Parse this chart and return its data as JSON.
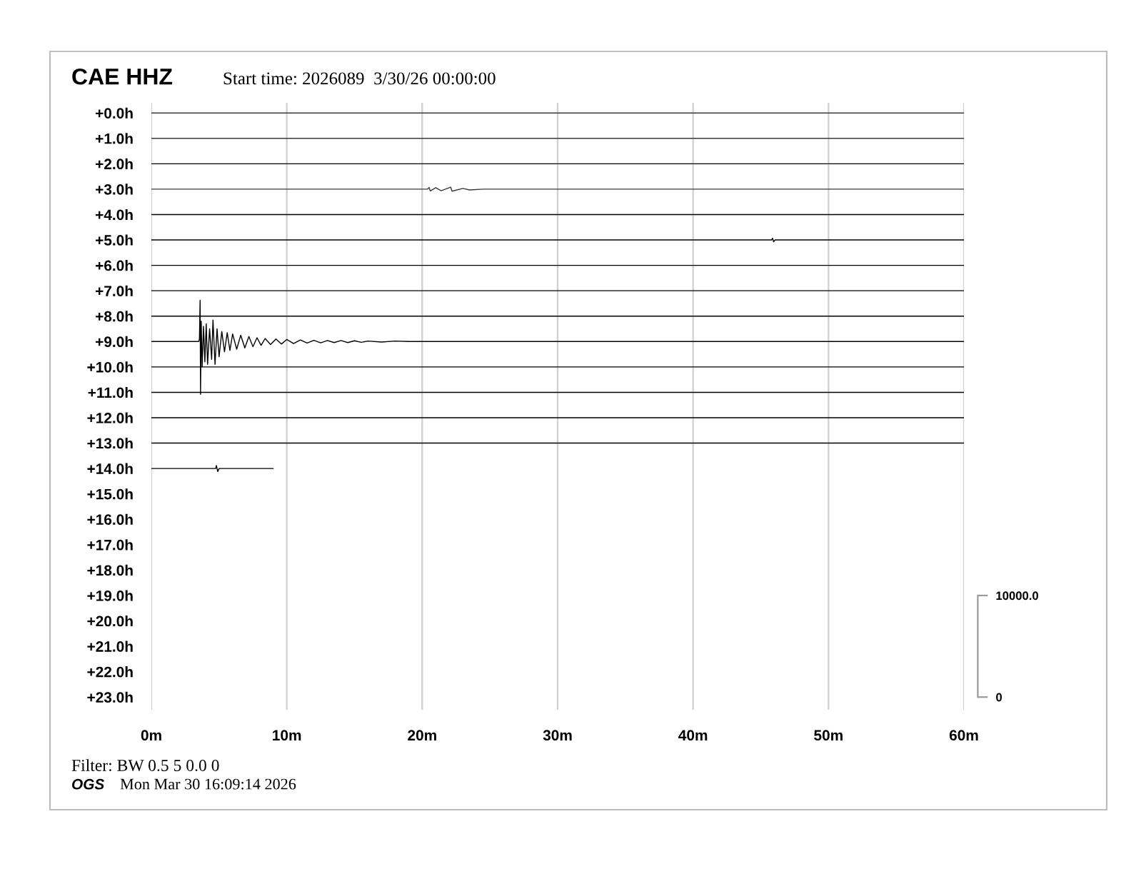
{
  "chart_data": {
    "type": "line",
    "title": "CAE HHZ",
    "subtitle": "Start time: 2026089  3/30/26 00:00:00",
    "annotations": [
      "Filter: BW 0.5 5 0.0 0",
      "OGS",
      "Mon Mar 30 16:09:14 2026"
    ],
    "xlim": [
      0,
      60
    ],
    "xticks": [
      {
        "value": 0,
        "label": "0m"
      },
      {
        "value": 10,
        "label": "10m"
      },
      {
        "value": 20,
        "label": "20m"
      },
      {
        "value": 30,
        "label": "30m"
      },
      {
        "value": 40,
        "label": "40m"
      },
      {
        "value": 50,
        "label": "50m"
      },
      {
        "value": 60,
        "label": "60m"
      }
    ],
    "ylim": [
      23.5,
      -0.4
    ],
    "yticks": [
      {
        "value": 0,
        "label": "+0.0h"
      },
      {
        "value": 1,
        "label": "+1.0h"
      },
      {
        "value": 2,
        "label": "+2.0h"
      },
      {
        "value": 3,
        "label": "+3.0h"
      },
      {
        "value": 4,
        "label": "+4.0h"
      },
      {
        "value": 5,
        "label": "+5.0h"
      },
      {
        "value": 6,
        "label": "+6.0h"
      },
      {
        "value": 7,
        "label": "+7.0h"
      },
      {
        "value": 8,
        "label": "+8.0h"
      },
      {
        "value": 9,
        "label": "+9.0h"
      },
      {
        "value": 10,
        "label": "+10.0h"
      },
      {
        "value": 11,
        "label": "+11.0h"
      },
      {
        "value": 12,
        "label": "+12.0h"
      },
      {
        "value": 13,
        "label": "+13.0h"
      },
      {
        "value": 14,
        "label": "+14.0h"
      },
      {
        "value": 15,
        "label": "+15.0h"
      },
      {
        "value": 16,
        "label": "+16.0h"
      },
      {
        "value": 17,
        "label": "+17.0h"
      },
      {
        "value": 18,
        "label": "+18.0h"
      },
      {
        "value": 19,
        "label": "+19.0h"
      },
      {
        "value": 20,
        "label": "+20.0h"
      },
      {
        "value": 21,
        "label": "+21.0h"
      },
      {
        "value": 22,
        "label": "+22.0h"
      },
      {
        "value": 23,
        "label": "+23.0h"
      }
    ],
    "y2lim": [
      -1250,
      58500
    ],
    "y2ticks": [
      0,
      {
        "value": 10000,
        "label": "10000.0"
      }
    ],
    "grid": "x",
    "marker": "none",
    "line_style": "solid",
    "series": [
      {
        "color": "#3a3a3a",
        "x": [
          0,
          60
        ],
        "values": [
          0,
          0
        ]
      },
      {
        "color": "#3a3a3a",
        "x": [
          0,
          60
        ],
        "values": [
          1,
          1
        ]
      },
      {
        "color": "#000000",
        "x": [
          0,
          60
        ],
        "values": [
          2,
          2
        ]
      },
      {
        "color": "#3a3a3a",
        "x": [
          0,
          20.4,
          20.5,
          20.6,
          21.0,
          21.4,
          22.1,
          22.2,
          23.0,
          23.5,
          24.5,
          60
        ],
        "values": [
          3,
          3,
          2.93,
          3.07,
          2.94,
          3.06,
          2.92,
          3.08,
          2.97,
          3.03,
          3,
          3
        ]
      },
      {
        "color": "#000000",
        "x": [
          0,
          60
        ],
        "values": [
          4,
          4
        ]
      },
      {
        "color": "#000000",
        "x": [
          0,
          45.8,
          45.87,
          45.95,
          46.05,
          60
        ],
        "values": [
          5,
          5,
          4.93,
          5.07,
          5,
          5
        ]
      },
      {
        "color": "#000000",
        "x": [
          0,
          60
        ],
        "values": [
          6,
          6
        ]
      },
      {
        "color": "#000000",
        "x": [
          0,
          60
        ],
        "values": [
          7,
          7
        ]
      },
      {
        "color": "#000000",
        "x": [
          0,
          60
        ],
        "values": [
          8,
          8
        ]
      },
      {
        "color": "#000000",
        "x": [
          0,
          3.5,
          3.55,
          3.6,
          3.63,
          3.68,
          3.75,
          3.85,
          3.95,
          4.05,
          4.15,
          4.3,
          4.45,
          4.55,
          4.7,
          4.85,
          5.0,
          5.2,
          5.4,
          5.6,
          5.8,
          6.0,
          6.3,
          6.6,
          6.9,
          7.2,
          7.5,
          7.8,
          8.1,
          8.4,
          8.8,
          9.2,
          9.6,
          10.0,
          10.5,
          11.0,
          11.5,
          12.0,
          12.5,
          13.0,
          13.5,
          14.0,
          14.5,
          15.0,
          15.5,
          16.0,
          17.0,
          18.0,
          19.0,
          60
        ],
        "values": [
          9,
          9,
          8.9,
          7.37,
          11.08,
          8.2,
          10.0,
          8.4,
          9.8,
          8.3,
          9.9,
          8.5,
          9.7,
          8.15,
          9.9,
          8.5,
          9.6,
          8.6,
          9.4,
          8.65,
          9.35,
          8.7,
          9.3,
          8.75,
          9.25,
          8.8,
          9.2,
          8.85,
          9.15,
          8.88,
          9.12,
          8.9,
          9.1,
          8.92,
          9.08,
          8.94,
          9.06,
          8.95,
          9.05,
          8.96,
          9.04,
          8.96,
          9.04,
          8.97,
          9.03,
          8.98,
          9.02,
          8.98,
          9,
          9
        ]
      },
      {
        "color": "#000000",
        "x": [
          0,
          60
        ],
        "values": [
          10,
          10
        ]
      },
      {
        "color": "#000000",
        "x": [
          0,
          60
        ],
        "values": [
          11,
          11
        ]
      },
      {
        "color": "#000000",
        "x": [
          0,
          60
        ],
        "values": [
          12,
          12
        ]
      },
      {
        "color": "#000000",
        "x": [
          0,
          60
        ],
        "values": [
          13,
          13
        ]
      },
      {
        "color": "#000000",
        "x": [
          0,
          4.75,
          4.8,
          4.9,
          5.0,
          9.0
        ],
        "values": [
          14,
          14,
          13.88,
          14.12,
          14,
          14
        ]
      }
    ]
  }
}
